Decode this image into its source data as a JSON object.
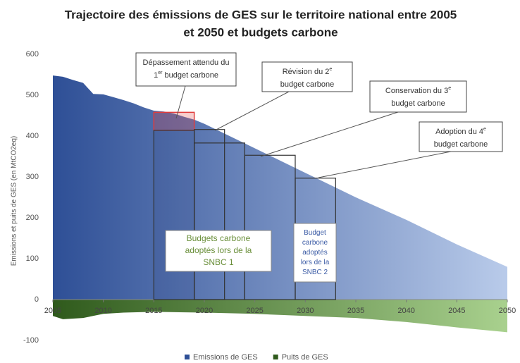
{
  "chart_data": {
    "type": "area",
    "title_lines": [
      "Trajectoire des émissions de GES sur le territoire national entre 2005",
      "et 2050 et budgets carbone"
    ],
    "y_label": "Emissions et puits de GES (en MtCO2eq)",
    "xlim": [
      2005,
      2050
    ],
    "xticks": [
      2005,
      2010,
      2015,
      2020,
      2025,
      2030,
      2035,
      2040,
      2045,
      2050
    ],
    "ylim": [
      -100,
      600
    ],
    "yticks": [
      -100,
      0,
      100,
      200,
      300,
      400,
      500,
      600
    ],
    "legend": "bottom",
    "series": [
      {
        "name": "Emissions de GES",
        "color": "#2e4f96",
        "color_end": "#b9cbea",
        "x": [
          2005,
          2006,
          2007,
          2008,
          2009,
          2010,
          2011,
          2012,
          2013,
          2014,
          2015,
          2016,
          2017,
          2018,
          2019,
          2020,
          2025,
          2030,
          2035,
          2040,
          2045,
          2050
        ],
        "values": [
          548,
          545,
          537,
          530,
          503,
          502,
          495,
          488,
          480,
          470,
          462,
          460,
          455,
          447,
          440,
          430,
          370,
          310,
          250,
          195,
          135,
          80
        ]
      },
      {
        "name": "Puits de GES",
        "color": "#2f5a1c",
        "color_end": "#a9d18e",
        "x": [
          2005,
          2006,
          2008,
          2010,
          2012,
          2015,
          2020,
          2025,
          2030,
          2035,
          2040,
          2045,
          2050
        ],
        "values": [
          -40,
          -48,
          -45,
          -35,
          -32,
          -30,
          -32,
          -35,
          -40,
          -45,
          -55,
          -68,
          -80
        ]
      }
    ],
    "budgets": [
      {
        "start": 2015,
        "end": 2019,
        "value": 414
      },
      {
        "start": 2019,
        "end": 2022,
        "value": 416
      },
      {
        "start": 2019,
        "end": 2024,
        "value": 383
      },
      {
        "start": 2024,
        "end": 2029,
        "value": 353
      },
      {
        "start": 2029,
        "end": 2033,
        "value": 297
      }
    ],
    "overshoot": {
      "start": 2015,
      "end": 2019,
      "value": 458,
      "color": "#e03c3c"
    },
    "annotations": [
      {
        "lines": [
          [
            {
              "text": "Dépassement attendu du"
            }
          ],
          [
            {
              "text": "1"
            },
            {
              "text": "er",
              "sup": true
            },
            {
              "text": " budget carbone"
            }
          ]
        ]
      },
      {
        "lines": [
          [
            {
              "text": "Révision du 2"
            },
            {
              "text": "e",
              "sup": true
            }
          ],
          [
            {
              "text": "budget carbone"
            }
          ]
        ]
      },
      {
        "lines": [
          [
            {
              "text": "Conservation du 3"
            },
            {
              "text": "e",
              "sup": true
            }
          ],
          [
            {
              "text": "budget carbone"
            }
          ]
        ]
      },
      {
        "lines": [
          [
            {
              "text": "Adoption du 4"
            },
            {
              "text": "e",
              "sup": true
            }
          ],
          [
            {
              "text": "budget carbone"
            }
          ]
        ]
      }
    ],
    "snbc_labels": [
      {
        "color": "#6a8f3a",
        "lines": [
          "Budgets carbone",
          "adoptés lors de la",
          "SNBC 1"
        ]
      },
      {
        "color": "#3b5ba5",
        "lines": [
          "Budget",
          "carbone",
          "adoptés",
          "lors de la",
          "SNBC 2"
        ]
      }
    ]
  }
}
